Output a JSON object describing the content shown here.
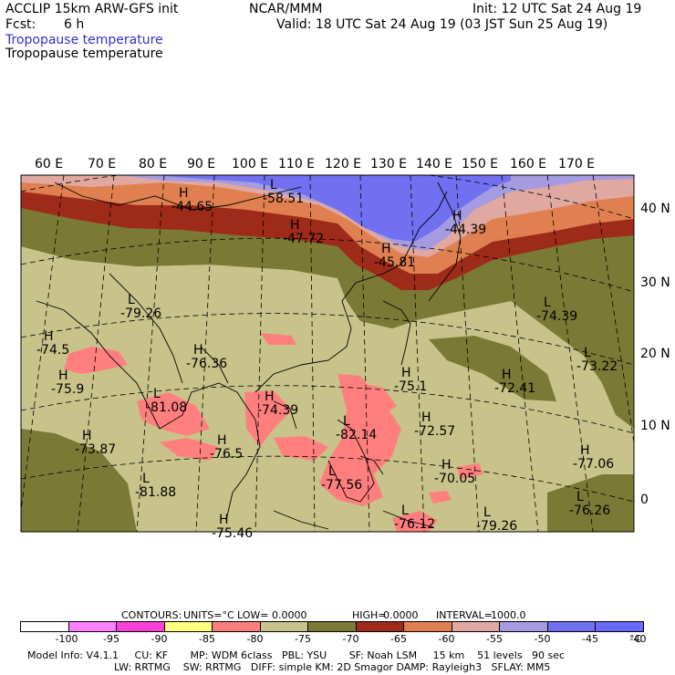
{
  "header": {
    "model_title": "ACCLIP 15km ARW-GFS init",
    "org": "NCAR/MMM",
    "init": "Init: 12 UTC Sat 24 Aug 19",
    "fcst_label": "Fcst:",
    "fcst_value": "6 h",
    "valid": "Valid: 18 UTC Sat 24 Aug 19 (03 JST Sun 25 Aug 19)",
    "field_title_blue": "Tropopause temperature",
    "field_title_black": "Tropopause temperature"
  },
  "map": {
    "lon_labels": [
      "60 E",
      "70 E",
      "80 E",
      "90 E",
      "100 E",
      "110 E",
      "120 E",
      "130 E",
      "140 E",
      "150 E",
      "160 E",
      "170 E"
    ],
    "lat_labels": [
      "40 N",
      "30 N",
      "20 N",
      "10 N",
      "0"
    ],
    "colors": {
      "c_m80": "#ff7f7f",
      "c_m75": "#c8c38a",
      "c_m70": "#7a7a36",
      "c_m65": "#9e2a1a",
      "c_m60": "#e08050",
      "c_m55": "#e0a8a0",
      "c_m50": "#a59be0",
      "c_m45": "#7070f0"
    },
    "markers": [
      {
        "type": "H",
        "value": "-44.65"
      },
      {
        "type": "L",
        "value": "-58.51"
      },
      {
        "type": "H",
        "value": "-47.72"
      },
      {
        "type": "H",
        "value": "-45.81"
      },
      {
        "type": "H",
        "value": "-44.39"
      },
      {
        "type": "L",
        "value": "-79.26"
      },
      {
        "type": "H",
        "value": "-74.5"
      },
      {
        "type": "H",
        "value": "-75.9"
      },
      {
        "type": "H",
        "value": "-76.36"
      },
      {
        "type": "L",
        "value": "-81.08"
      },
      {
        "type": "H",
        "value": "-74.39"
      },
      {
        "type": "H",
        "value": "-73.87"
      },
      {
        "type": "H",
        "value": "-76.5"
      },
      {
        "type": "L",
        "value": "-81.88"
      },
      {
        "type": "H",
        "value": "-75.46"
      },
      {
        "type": "L",
        "value": "-82.14"
      },
      {
        "type": "L",
        "value": "-77.56"
      },
      {
        "type": "H",
        "value": "-75.1"
      },
      {
        "type": "H",
        "value": "-72.57"
      },
      {
        "type": "H",
        "value": "-70.05"
      },
      {
        "type": "L",
        "value": "-76.12"
      },
      {
        "type": "L",
        "value": "-79.26"
      },
      {
        "type": "L",
        "value": "-74.39"
      },
      {
        "type": "L",
        "value": "-73.22"
      },
      {
        "type": "H",
        "value": "-72.41"
      },
      {
        "type": "H",
        "value": "-77.06"
      },
      {
        "type": "L",
        "value": "-76.26"
      }
    ]
  },
  "contours_line": {
    "contours": "CONTOURS:",
    "units": "UNITS=°C",
    "low": "LOW=",
    "low_value": "0.0000",
    "high": "HIGH=",
    "high_value": "0.0000",
    "interval": "INTERVAL=",
    "interval_value": "1000.0"
  },
  "colorbar": {
    "boxes": [
      "#ffffff",
      "#ff80ff",
      "#ff40d8",
      "#ffff80",
      "#ff7f7f",
      "#c8c38a",
      "#7a7a36",
      "#9e2a1a",
      "#e08050",
      "#e0a8a0",
      "#a59be0",
      "#7070f0",
      "#6a6aff"
    ],
    "labels": [
      "-100",
      "-95",
      "-90",
      "-85",
      "-80",
      "-75",
      "-70",
      "-65",
      "-60",
      "-55",
      "-50",
      "-45",
      "-40"
    ],
    "unit": "°C"
  },
  "footer": {
    "line1": "Model Info: V4.1.1     CU: KF       MP: WDM 6class   PBL: YSU       SF: Noah LSM     15 km    51 levels   90 sec",
    "line2": "LW: RRTMG    SW: RRTMG   DIFF: simple KM: 2D Smagor DAMP: Rayleigh3   SFLAY: MM5"
  }
}
